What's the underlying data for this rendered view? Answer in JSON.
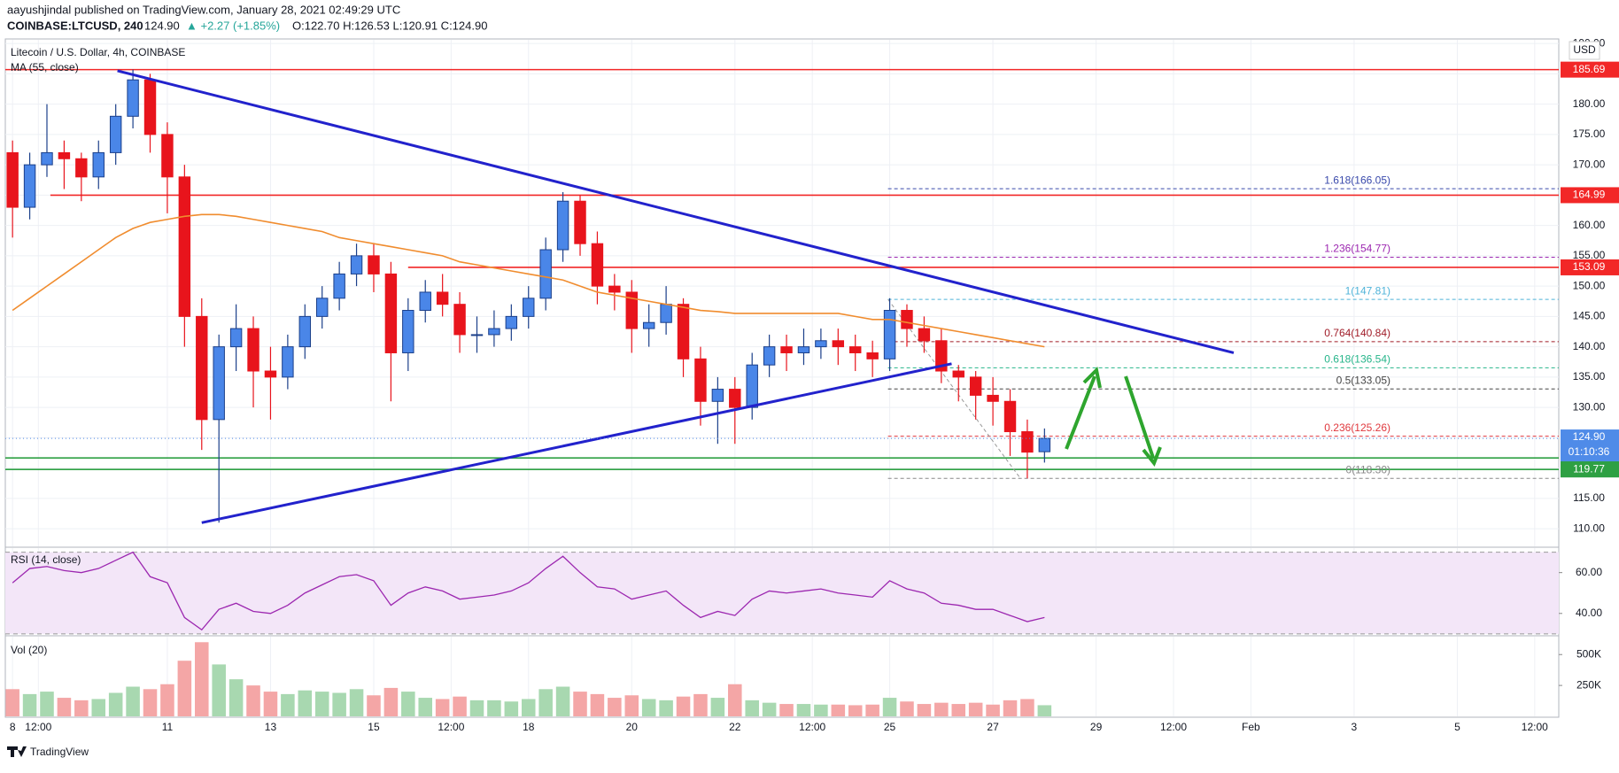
{
  "chart_data": {
    "type": "candlestick",
    "header": {
      "author_line": "aayushjindal published on TradingView.com, January 28, 2021 02:49:29 UTC",
      "symbol": "COINBASE:LTCUSD, 240",
      "last": "124.90",
      "change": "▲ +2.27 (+1.85%)",
      "ohlc_line": "O:122.70 H:126.53 L:120.91 C:124.90"
    },
    "title": "Litecoin / U.S. Dollar, 4h, COINBASE",
    "currency": "USD",
    "brand": "TradingView",
    "up_color": "#4a86e8",
    "down_color": "#e8141c",
    "open": [
      172,
      163,
      170,
      172,
      171,
      168,
      172,
      178,
      184,
      175,
      168,
      145,
      128,
      140,
      143,
      136,
      135,
      140,
      145,
      148,
      152,
      155,
      152,
      139,
      146,
      149,
      147,
      142,
      142,
      143,
      145,
      148,
      156,
      164,
      157,
      150,
      149,
      143,
      144,
      147,
      138,
      131,
      133,
      130,
      137,
      140,
      139,
      140,
      141,
      140,
      139,
      138,
      146,
      143,
      141,
      136,
      135,
      132,
      131,
      126,
      122.7
    ],
    "high": [
      174,
      172,
      180,
      174,
      172,
      174,
      180,
      185.69,
      185,
      177,
      170,
      148,
      142,
      147,
      145,
      140,
      142,
      147,
      150,
      154,
      157,
      157,
      154,
      148,
      151,
      152,
      149,
      145,
      146,
      147,
      150,
      158,
      165.5,
      165,
      159,
      152,
      151,
      147,
      150,
      148,
      140,
      135,
      135,
      139,
      142,
      142,
      143,
      143,
      143,
      142,
      141,
      148,
      147,
      145,
      143,
      137,
      136,
      135,
      133,
      128,
      126.53
    ],
    "low": [
      158,
      161,
      168,
      166,
      164,
      166,
      170,
      176,
      172,
      162,
      140,
      123,
      111,
      136,
      130,
      128,
      133,
      138,
      143,
      146,
      150,
      149,
      131,
      136,
      144,
      145,
      139,
      139,
      140,
      141,
      143,
      146,
      154,
      155,
      147,
      146,
      139,
      140,
      142,
      135,
      127,
      124,
      124,
      128,
      135,
      136,
      137,
      138,
      137,
      136,
      135,
      136,
      140,
      139,
      134,
      131,
      128,
      127,
      122,
      118.3,
      120.91
    ],
    "close": [
      163,
      170,
      172,
      171,
      168,
      172,
      178,
      184,
      175,
      168,
      145,
      128,
      140,
      143,
      136,
      135,
      140,
      145,
      148,
      152,
      155,
      152,
      139,
      146,
      149,
      147,
      142,
      142,
      143,
      145,
      148,
      156,
      164,
      157,
      150,
      149,
      143,
      144,
      147,
      138,
      131,
      133,
      130,
      137,
      140,
      139,
      140,
      141,
      140,
      139,
      138,
      146,
      143,
      141,
      136,
      135,
      132,
      131,
      126,
      122.63,
      124.9
    ],
    "xlim": [
      -0.42,
      89.9
    ],
    "xticks": [
      {
        "value": 0,
        "label": "8"
      },
      {
        "value": 1.5,
        "label": "12:00"
      },
      {
        "value": 9,
        "label": "11"
      },
      {
        "value": 15,
        "label": "13"
      },
      {
        "value": 21,
        "label": "15"
      },
      {
        "value": 25.5,
        "label": "12:00"
      },
      {
        "value": 30,
        "label": "18"
      },
      {
        "value": 36,
        "label": "20"
      },
      {
        "value": 42,
        "label": "22"
      },
      {
        "value": 46.5,
        "label": "12:00"
      },
      {
        "value": 51,
        "label": "25"
      },
      {
        "value": 57,
        "label": "27"
      },
      {
        "value": 63,
        "label": "29"
      },
      {
        "value": 67.5,
        "label": "12:00"
      },
      {
        "value": 72,
        "label": "Feb"
      },
      {
        "value": 78,
        "label": "3"
      },
      {
        "value": 84,
        "label": "5"
      },
      {
        "value": 88.5,
        "label": "12:00"
      }
    ],
    "ylim": [
      107.1,
      190.6
    ],
    "yticks": [
      {
        "value": 110,
        "label": "110.00"
      },
      {
        "value": 115,
        "label": "115.00"
      },
      {
        "value": 120,
        "label": "120.00"
      },
      {
        "value": 125,
        "label": "125.00"
      },
      {
        "value": 130,
        "label": "130.00"
      },
      {
        "value": 135,
        "label": "135.00"
      },
      {
        "value": 140,
        "label": "140.00"
      },
      {
        "value": 145,
        "label": "145.00"
      },
      {
        "value": 150,
        "label": "150.00"
      },
      {
        "value": 155,
        "label": "155.00"
      },
      {
        "value": 160,
        "label": "160.00"
      },
      {
        "value": 165,
        "label": "165.00"
      },
      {
        "value": 170,
        "label": "170.00"
      },
      {
        "value": 175,
        "label": "175.00"
      },
      {
        "value": 180,
        "label": "180.00"
      },
      {
        "value": 185,
        "label": "185.00"
      },
      {
        "value": 190,
        "label": "190.00"
      }
    ],
    "grid": true,
    "ma": {
      "name": "MA (55, close)",
      "color": "#f08c2e",
      "values": [
        146,
        148,
        150,
        152,
        154,
        156,
        158,
        159.5,
        160.5,
        161,
        161.5,
        161.8,
        161.8,
        161.5,
        161,
        160.5,
        160,
        159.5,
        159,
        158,
        157.5,
        157,
        156.5,
        156,
        155.5,
        155,
        154,
        153.5,
        153,
        152.5,
        152,
        151.5,
        151,
        150,
        149,
        148.5,
        148,
        147.5,
        147,
        146.5,
        146,
        145.8,
        145.5,
        145.5,
        145.5,
        145.5,
        145.5,
        145.5,
        145.5,
        145,
        144.5,
        144.5,
        144,
        143.5,
        143,
        142.5,
        142,
        141.5,
        141,
        140.5,
        140
      ]
    },
    "levels": [
      {
        "value": 185.69,
        "color": "#f22727",
        "x0": -0.42
      },
      {
        "value": 164.99,
        "color": "#f22727",
        "x0": 2.2
      },
      {
        "value": 153.09,
        "color": "#f22727",
        "x0": 23
      },
      {
        "value": 121.67,
        "color": "#2ea043",
        "x0": -0.42
      },
      {
        "value": 119.77,
        "color": "#2ea043",
        "x0": -0.42
      }
    ],
    "last_price": {
      "value": 124.9,
      "label": "124.90",
      "countdown": "01:10:36",
      "color": "#4f8be8"
    },
    "trendlines": [
      {
        "x": [
          6.1,
          71
        ],
        "y": [
          185.5,
          139
        ],
        "color": "#2222cc"
      },
      {
        "x": [
          11,
          54.6
        ],
        "y": [
          111,
          137.2
        ],
        "color": "#2222cc"
      }
    ],
    "fib": {
      "x": [
        50.9,
        58.6
      ],
      "levels": [
        {
          "value": 166.05,
          "label": "1.618(166.05)",
          "color": "#3949ab"
        },
        {
          "value": 154.77,
          "label": "1.236(154.77)",
          "color": "#9c27b0"
        },
        {
          "value": 147.81,
          "label": "1(147.81)",
          "color": "#4fb3d9"
        },
        {
          "value": 140.84,
          "label": "0.764(140.84)",
          "color": "#a01c28"
        },
        {
          "value": 136.54,
          "label": "0.618(136.54)",
          "color": "#26b58a"
        },
        {
          "value": 133.05,
          "label": "0.5(133.05)",
          "color": "#444444"
        },
        {
          "value": 125.26,
          "label": "0.236(125.26)",
          "color": "#e0393e"
        },
        {
          "value": 118.3,
          "label": "0(118.30)",
          "color": "#888888"
        }
      ]
    },
    "rsi": {
      "name": "RSI (14, close)",
      "color": "#9c27b0",
      "ylim": [
        29.5,
        72
      ],
      "bands": [
        30,
        70
      ],
      "yticks": [
        {
          "value": 40,
          "label": "40.00"
        },
        {
          "value": 60,
          "label": "60.00"
        }
      ],
      "values": [
        55,
        62,
        63,
        61,
        60,
        62,
        66,
        70,
        58,
        55,
        38,
        32,
        42,
        45,
        41,
        40,
        44,
        50,
        54,
        58,
        59,
        56,
        44,
        50,
        53,
        51,
        47,
        48,
        49,
        51,
        55,
        62,
        68,
        60,
        53,
        52,
        47,
        49,
        51,
        44,
        38,
        41,
        39,
        47,
        51,
        50,
        51,
        52,
        50,
        49,
        48,
        56,
        52,
        50,
        45,
        44,
        42,
        42,
        39,
        36,
        38
      ]
    },
    "volume": {
      "name": "Vol (20)",
      "up_color": "#a8d8b0",
      "down_color": "#f4a6a6",
      "ylim": [
        0,
        645000
      ],
      "yticks": [
        {
          "value": 250000,
          "label": "250K"
        },
        {
          "value": 500000,
          "label": "500K"
        }
      ],
      "values": [
        220000,
        180000,
        200000,
        150000,
        130000,
        140000,
        190000,
        240000,
        220000,
        260000,
        450000,
        600000,
        420000,
        300000,
        250000,
        200000,
        180000,
        210000,
        200000,
        190000,
        220000,
        170000,
        230000,
        200000,
        150000,
        140000,
        160000,
        130000,
        130000,
        120000,
        140000,
        220000,
        240000,
        200000,
        180000,
        150000,
        170000,
        140000,
        130000,
        160000,
        180000,
        150000,
        260000,
        130000,
        110000,
        100000,
        100000,
        95000,
        95000,
        90000,
        95000,
        150000,
        120000,
        100000,
        110000,
        100000,
        110000,
        95000,
        130000,
        140000,
        90000
      ]
    }
  }
}
